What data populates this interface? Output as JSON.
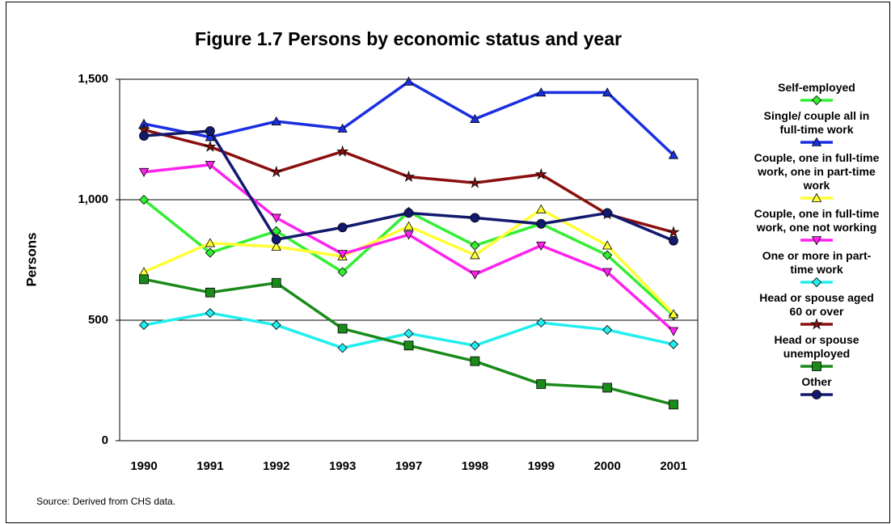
{
  "chart_data": {
    "type": "line",
    "title": "Figure 1.7 Persons by economic status and year",
    "y_label": "Persons",
    "source": "Source: Derived from CHS data.",
    "categories": [
      "1990",
      "1991",
      "1992",
      "1993",
      "1997",
      "1998",
      "1999",
      "2000",
      "2001"
    ],
    "ylim": [
      0,
      1500
    ],
    "yticks": [
      0,
      500,
      {
        "value": 1000,
        "label": "1,000"
      },
      {
        "value": 1500,
        "label": "1,500"
      }
    ],
    "grid": true,
    "legend": "right",
    "series": [
      {
        "name": "Self-employed",
        "color": "#33ee33",
        "marker": "diamond",
        "values": [
          1000,
          780,
          870,
          700,
          950,
          810,
          900,
          770,
          520
        ]
      },
      {
        "name": "Single/ couple all in full-time work",
        "color": "#1a2fe0",
        "marker": "triangle",
        "values": [
          1315,
          1260,
          1325,
          1295,
          1490,
          1335,
          1445,
          1445,
          1185
        ]
      },
      {
        "name": "Couple, one in full-time work, one in part-time work",
        "color": "#ffff33",
        "marker": "triangle",
        "values": [
          700,
          820,
          805,
          765,
          890,
          770,
          960,
          810,
          525
        ]
      },
      {
        "name": "Couple, one in full-time work, one not working",
        "color": "#ff22ee",
        "marker": "triangle-down",
        "values": [
          1115,
          1145,
          925,
          775,
          855,
          690,
          810,
          700,
          455
        ]
      },
      {
        "name": "One or more in part-time work",
        "color": "#22eeee",
        "marker": "diamond",
        "values": [
          480,
          530,
          480,
          385,
          445,
          395,
          490,
          460,
          400
        ]
      },
      {
        "name": "Head or spouse aged 60 or over",
        "color": "#8b1010",
        "marker": "star",
        "values": [
          1290,
          1220,
          1115,
          1200,
          1095,
          1070,
          1105,
          940,
          865
        ]
      },
      {
        "name": "Head or spouse unemployed",
        "color": "#1a8a1a",
        "marker": "square",
        "values": [
          670,
          615,
          655,
          465,
          395,
          330,
          235,
          220,
          150
        ]
      },
      {
        "name": "Other",
        "color": "#13196e",
        "marker": "circle",
        "values": [
          1265,
          1285,
          835,
          885,
          945,
          925,
          900,
          945,
          830
        ]
      }
    ]
  }
}
